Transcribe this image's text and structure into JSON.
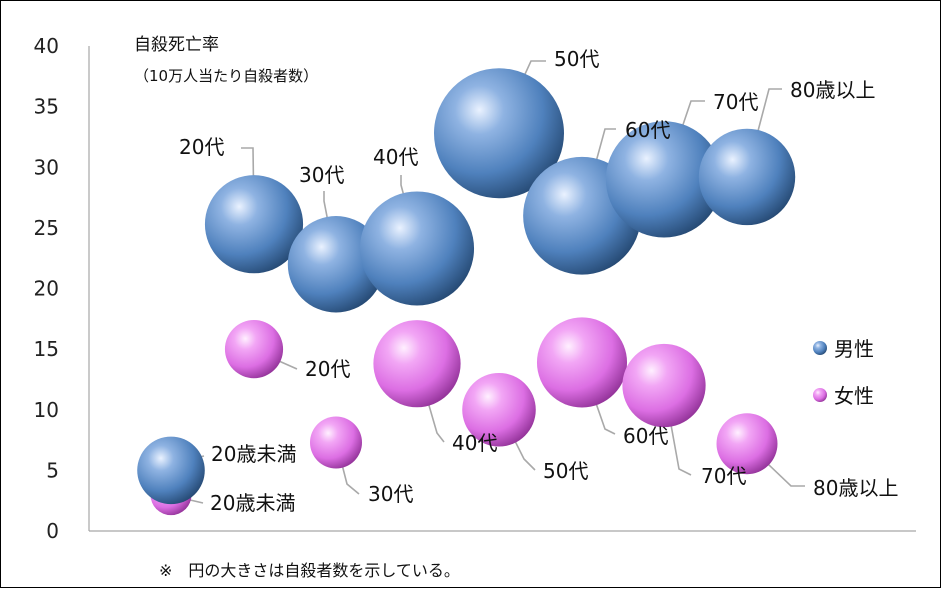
{
  "chart_data": {
    "type": "bubble",
    "title": "自殺死亡率",
    "subtitle": "（10万人当たり自殺者数）",
    "ylim": [
      0,
      40
    ],
    "yticks": [
      0,
      5,
      10,
      15,
      20,
      25,
      30,
      35,
      40
    ],
    "grid": false,
    "legend_position": "right",
    "footnote": "※　円の大きさは自殺者数を示している。",
    "colors": {
      "male": "#4f81bd",
      "female": "#e070e6"
    },
    "series": [
      {
        "name": "男性",
        "color": "#4f81bd",
        "points": [
          {
            "label": "20歳未満",
            "y": 5.0,
            "size": 0.27
          },
          {
            "label": "20代",
            "y": 25.3,
            "size": 0.57
          },
          {
            "label": "30代",
            "y": 22.0,
            "size": 0.55
          },
          {
            "label": "40代",
            "y": 23.3,
            "size": 0.77
          },
          {
            "label": "50代",
            "y": 32.8,
            "size": 1.0
          },
          {
            "label": "60代",
            "y": 26.0,
            "size": 0.82
          },
          {
            "label": "70代",
            "y": 29.0,
            "size": 0.8
          },
          {
            "label": "80歳以上",
            "y": 29.2,
            "size": 0.55
          }
        ]
      },
      {
        "name": "女性",
        "color": "#e070e6",
        "points": [
          {
            "label": "20歳未満",
            "y": 3.0,
            "size": 0.1
          },
          {
            "label": "20代",
            "y": 15.0,
            "size": 0.2
          },
          {
            "label": "30代",
            "y": 7.3,
            "size": 0.16
          },
          {
            "label": "40代",
            "y": 13.8,
            "size": 0.45
          },
          {
            "label": "50代",
            "y": 10.0,
            "size": 0.32
          },
          {
            "label": "60代",
            "y": 13.9,
            "size": 0.48
          },
          {
            "label": "70代",
            "y": 12.0,
            "size": 0.41
          },
          {
            "label": "80歳以上",
            "y": 7.2,
            "size": 0.22
          }
        ]
      }
    ]
  }
}
